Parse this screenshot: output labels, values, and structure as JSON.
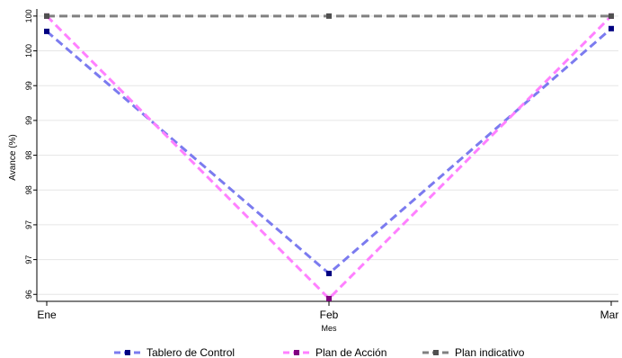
{
  "chart_data": {
    "type": "line",
    "title": "",
    "xlabel": "Mes",
    "ylabel": "Avance (%)",
    "categories": [
      "Ene",
      "Feb",
      "Mar"
    ],
    "x": [
      1,
      2,
      3
    ],
    "ylim": [
      95.9,
      100.05
    ],
    "y_ticks": [
      96,
      96.5,
      97,
      97.5,
      98,
      98.5,
      99,
      99.5,
      100
    ],
    "y_tick_labels": [
      "96",
      "97",
      "97",
      "98",
      "98",
      "99",
      "99",
      "100",
      "100"
    ],
    "grid": true,
    "legend_position": "bottom",
    "series": [
      {
        "name": "Tablero de Control",
        "values": [
          99.78,
          96.3,
          99.82
        ],
        "line_color": "#7b7bef",
        "marker_color": "#000080",
        "dashed": true
      },
      {
        "name": "Plan de Acción",
        "values": [
          100.0,
          95.94,
          100.0
        ],
        "line_color": "#ff80ff",
        "marker_color": "#800080",
        "dashed": true
      },
      {
        "name": "Plan indicativo",
        "values": [
          100.0,
          100.0,
          100.0
        ],
        "line_color": "#808080",
        "marker_color": "#505050",
        "dashed": true
      }
    ]
  }
}
